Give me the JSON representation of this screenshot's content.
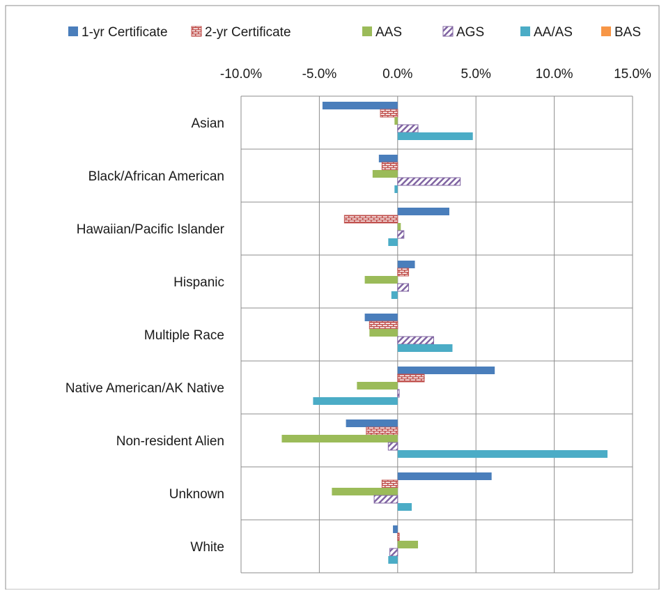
{
  "chart_data": {
    "type": "bar",
    "orientation": "horizontal",
    "title": "",
    "xlabel": "",
    "ylabel": "",
    "xlim": [
      -10.0,
      15.0
    ],
    "x_ticks": [
      "-10.0%",
      "-5.0%",
      "0.0%",
      "5.0%",
      "10.0%",
      "15.0%"
    ],
    "x_tick_values": [
      -10,
      -5,
      0,
      5,
      10,
      15
    ],
    "x_axis_position": "top",
    "grid": true,
    "legend_position": "top",
    "categories": [
      "Asian",
      "Black/African American",
      "Hawaiian/Pacific Islander",
      "Hispanic",
      "Multiple Race",
      "Native American/AK Native",
      "Non-resident Alien",
      "Unknown",
      "White"
    ],
    "series": [
      {
        "name": "1-yr Certificate",
        "color": "#4A7EBB",
        "pattern": "solid",
        "values": [
          -4.8,
          -1.2,
          3.3,
          1.1,
          -2.1,
          6.2,
          -3.3,
          6.0,
          -0.3
        ]
      },
      {
        "name": "2-yr Certificate",
        "color": "#C0504D",
        "pattern": "bricks",
        "values": [
          -1.1,
          -1.0,
          -3.4,
          0.7,
          -1.8,
          1.7,
          -2.0,
          -1.0,
          0.1
        ]
      },
      {
        "name": "AAS",
        "color": "#9BBB59",
        "pattern": "solid",
        "values": [
          -0.2,
          -1.6,
          0.2,
          -2.1,
          -1.8,
          -2.6,
          -7.4,
          -4.2,
          1.3
        ]
      },
      {
        "name": "AGS",
        "color": "#8064A2",
        "pattern": "diagonal",
        "values": [
          1.3,
          4.0,
          0.4,
          0.7,
          2.3,
          0.1,
          -0.6,
          -1.5,
          -0.5
        ]
      },
      {
        "name": "AA/AS",
        "color": "#4BACC6",
        "pattern": "solid",
        "values": [
          4.8,
          -0.2,
          -0.6,
          -0.4,
          3.5,
          -5.4,
          13.4,
          0.9,
          -0.6
        ]
      },
      {
        "name": "BAS",
        "color": "#F79646",
        "pattern": "solid",
        "values": [
          0,
          0,
          0,
          0,
          0,
          0,
          0,
          0,
          0
        ]
      }
    ]
  }
}
